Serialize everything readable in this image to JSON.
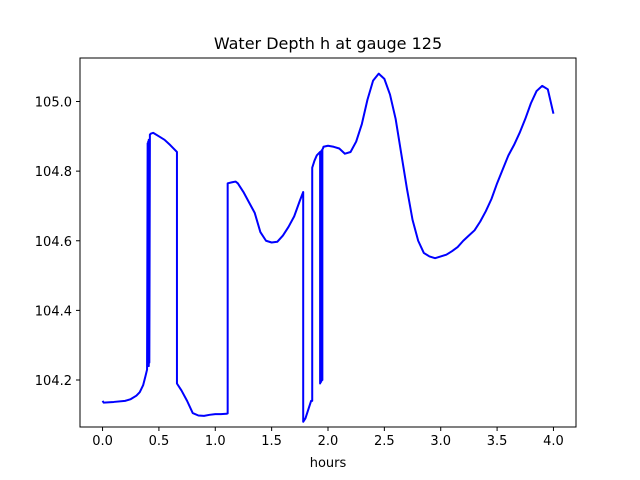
{
  "chart_data": {
    "type": "line",
    "title": "Water Depth h at gauge 125",
    "xlabel": "hours",
    "ylabel": "",
    "xlim": [
      -0.2,
      4.2
    ],
    "ylim": [
      104.065,
      105.125
    ],
    "x_ticks": [
      0.0,
      0.5,
      1.0,
      1.5,
      2.0,
      2.5,
      3.0,
      3.5,
      4.0
    ],
    "x_tick_labels": [
      "0.0",
      "0.5",
      "1.0",
      "1.5",
      "2.0",
      "2.5",
      "3.0",
      "3.5",
      "4.0"
    ],
    "y_ticks": [
      104.2,
      104.4,
      104.6,
      104.8,
      105.0
    ],
    "y_tick_labels": [
      "104.2",
      "104.4",
      "104.6",
      "104.8",
      "105.0"
    ],
    "grid": false,
    "series": [
      {
        "color": "#0000ff",
        "x": [
          0.0,
          0.01,
          0.1,
          0.2,
          0.25,
          0.3,
          0.33,
          0.36,
          0.38,
          0.395,
          0.4,
          0.4,
          0.405,
          0.41,
          0.41,
          0.415,
          0.42,
          0.42,
          0.43,
          0.45,
          0.5,
          0.55,
          0.6,
          0.66,
          0.66,
          0.67,
          0.7,
          0.75,
          0.8,
          0.85,
          0.9,
          0.95,
          1.0,
          1.05,
          1.1,
          1.11,
          1.11,
          1.15,
          1.18,
          1.2,
          1.25,
          1.3,
          1.35,
          1.4,
          1.45,
          1.5,
          1.55,
          1.6,
          1.65,
          1.7,
          1.75,
          1.78,
          1.78,
          1.8,
          1.85,
          1.86,
          1.86,
          1.88,
          1.9,
          1.93,
          1.93,
          1.935,
          1.94,
          1.94,
          1.945,
          1.95,
          1.95,
          1.955,
          1.96,
          1.96,
          2.0,
          2.05,
          2.1,
          2.15,
          2.2,
          2.25,
          2.3,
          2.35,
          2.4,
          2.45,
          2.5,
          2.55,
          2.6,
          2.65,
          2.7,
          2.75,
          2.8,
          2.85,
          2.9,
          2.95,
          3.0,
          3.05,
          3.1,
          3.15,
          3.2,
          3.25,
          3.3,
          3.35,
          3.4,
          3.45,
          3.5,
          3.55,
          3.6,
          3.65,
          3.7,
          3.75,
          3.8,
          3.85,
          3.9,
          3.95,
          4.0
        ],
        "y": [
          104.14,
          104.135,
          104.137,
          104.14,
          104.145,
          104.155,
          104.165,
          104.185,
          104.21,
          104.23,
          104.88,
          104.24,
          104.885,
          104.24,
          104.89,
          104.25,
          104.895,
          104.905,
          104.908,
          104.91,
          104.9,
          104.89,
          104.875,
          104.855,
          104.19,
          104.185,
          104.17,
          104.14,
          104.105,
          104.098,
          104.097,
          104.1,
          104.102,
          104.102,
          104.103,
          104.104,
          104.765,
          104.768,
          104.77,
          104.765,
          104.74,
          104.71,
          104.68,
          104.625,
          104.6,
          104.595,
          104.597,
          104.615,
          104.64,
          104.67,
          104.715,
          104.74,
          104.08,
          104.09,
          104.14,
          104.14,
          104.81,
          104.83,
          104.845,
          104.855,
          104.19,
          104.195,
          104.858,
          104.195,
          104.86,
          104.2,
          104.862,
          104.865,
          104.87,
          104.87,
          104.873,
          104.87,
          104.865,
          104.85,
          104.855,
          104.885,
          104.935,
          105.005,
          105.06,
          105.08,
          105.065,
          105.02,
          104.95,
          104.85,
          104.75,
          104.66,
          104.6,
          104.565,
          104.555,
          104.55,
          104.555,
          104.56,
          104.57,
          104.582,
          104.6,
          104.615,
          104.63,
          104.655,
          104.685,
          104.72,
          104.765,
          104.805,
          104.845,
          104.875,
          104.91,
          104.95,
          104.995,
          105.03,
          105.045,
          105.035,
          104.965
        ]
      }
    ]
  }
}
